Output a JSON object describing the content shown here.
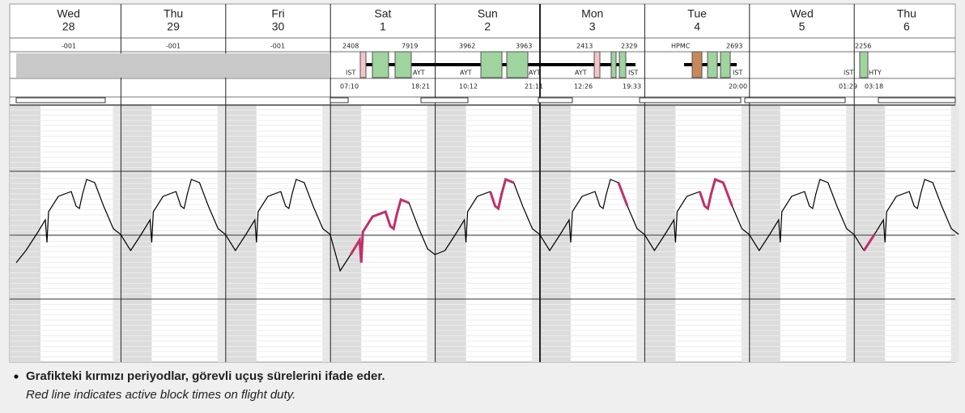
{
  "days": [
    {
      "name": "Wed",
      "date": "28"
    },
    {
      "name": "Thu",
      "date": "29"
    },
    {
      "name": "Fri",
      "date": "30"
    },
    {
      "name": "Sat",
      "date": "1"
    },
    {
      "name": "Sun",
      "date": "2"
    },
    {
      "name": "Mon",
      "date": "3"
    },
    {
      "name": "Tue",
      "date": "4"
    },
    {
      "name": "Wed",
      "date": "5"
    },
    {
      "name": "Thu",
      "date": "6"
    }
  ],
  "duty_codes": [
    "-001",
    "-001",
    "-001"
  ],
  "flights": [
    "2408",
    "7919",
    "IST",
    "AYT",
    "07:10",
    "18:21",
    "3962",
    "3963",
    "AYT",
    "AYT",
    "10:12",
    "21:11",
    "2413",
    "2329",
    "AYT",
    "IST",
    "12:26",
    "19:33",
    "HPMC",
    "2693",
    "IST",
    "20:00",
    "IST",
    "2256",
    "HTY",
    "01:29",
    "03:18"
  ],
  "note": {
    "title": "Grafikteki kırmızı periyodlar, görevli uçuş sürelerini ifade eder.",
    "subtitle": "Red line indicates active block times on flight duty."
  }
}
